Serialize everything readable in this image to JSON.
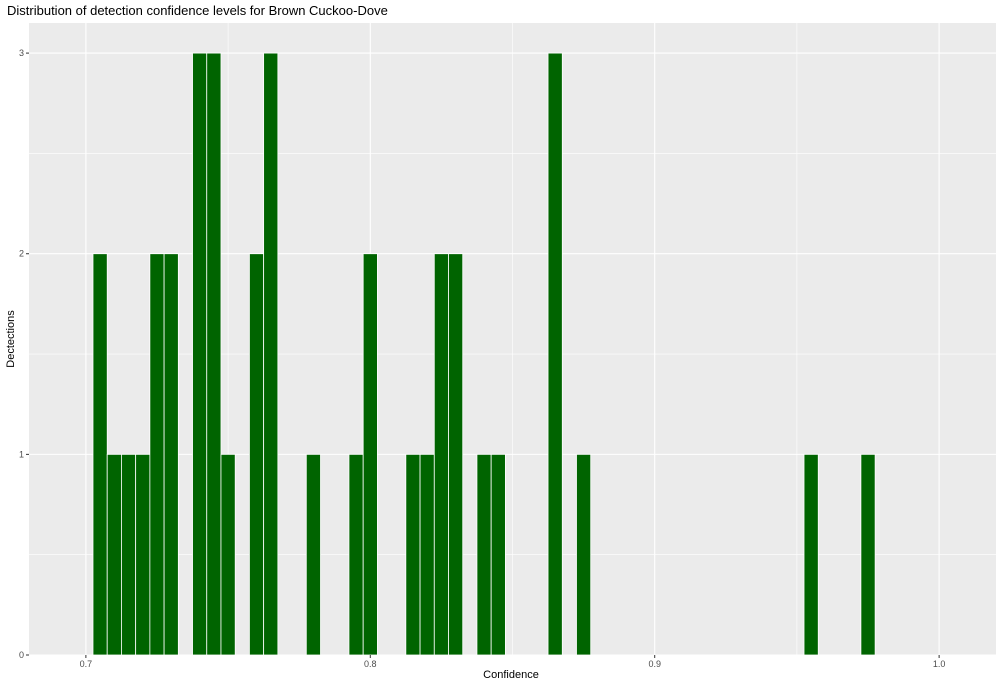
{
  "chart_data": {
    "type": "bar",
    "title": "Distribution of detection confidence levels for Brown Cuckoo-Dove",
    "xlabel": "Confidence",
    "ylabel": "Dectections",
    "xlim": [
      0.68,
      1.02
    ],
    "ylim": [
      0,
      3.15
    ],
    "x_ticks": [
      0.7,
      0.8,
      0.9,
      1.0
    ],
    "x_tick_labels": [
      "0.7",
      "0.8",
      "0.9",
      "1.0"
    ],
    "y_ticks": [
      0,
      1,
      2,
      3
    ],
    "y_tick_labels": [
      "0",
      "1",
      "2",
      "3"
    ],
    "bin_width": 0.005,
    "bins": [
      {
        "x": 0.705,
        "count": 2
      },
      {
        "x": 0.71,
        "count": 1
      },
      {
        "x": 0.715,
        "count": 1
      },
      {
        "x": 0.72,
        "count": 1
      },
      {
        "x": 0.725,
        "count": 2
      },
      {
        "x": 0.73,
        "count": 2
      },
      {
        "x": 0.74,
        "count": 3
      },
      {
        "x": 0.745,
        "count": 3
      },
      {
        "x": 0.75,
        "count": 1
      },
      {
        "x": 0.76,
        "count": 2
      },
      {
        "x": 0.765,
        "count": 3
      },
      {
        "x": 0.78,
        "count": 1
      },
      {
        "x": 0.795,
        "count": 1
      },
      {
        "x": 0.8,
        "count": 2
      },
      {
        "x": 0.815,
        "count": 1
      },
      {
        "x": 0.82,
        "count": 1
      },
      {
        "x": 0.825,
        "count": 2
      },
      {
        "x": 0.83,
        "count": 2
      },
      {
        "x": 0.84,
        "count": 1
      },
      {
        "x": 0.845,
        "count": 1
      },
      {
        "x": 0.865,
        "count": 3
      },
      {
        "x": 0.875,
        "count": 1
      },
      {
        "x": 0.955,
        "count": 1
      },
      {
        "x": 0.975,
        "count": 1
      }
    ],
    "bar_color": "#006400",
    "panel_background": "#ebebeb",
    "grid": true,
    "legend": "none"
  }
}
